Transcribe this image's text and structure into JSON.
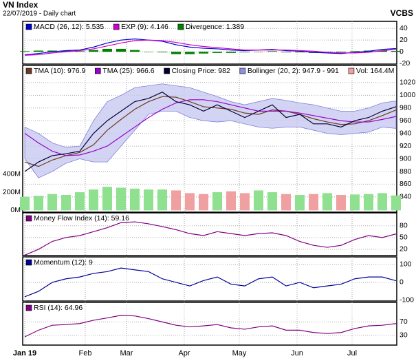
{
  "header": {
    "title": "VN Index",
    "subtitle": "22/07/2019 - Daily chart",
    "brand": "VCBS"
  },
  "x_axis": {
    "x": [
      0,
      5,
      10,
      15,
      20,
      25,
      30,
      35,
      40,
      45,
      50,
      55,
      60,
      65,
      70,
      75,
      80,
      85,
      90,
      95,
      100,
      105,
      110,
      115,
      120,
      125,
      130,
      135
    ],
    "xlim": [
      0,
      135
    ],
    "xticks": [
      {
        "value": 0,
        "label": "Jan 19"
      },
      {
        "value": 22,
        "label": "Feb"
      },
      {
        "value": 37,
        "label": "Mar"
      },
      {
        "value": 58,
        "label": "Apr"
      },
      {
        "value": 78,
        "label": "May"
      },
      {
        "value": 99,
        "label": "Jun"
      },
      {
        "value": 119,
        "label": "Jul"
      }
    ]
  },
  "chart_data": [
    {
      "type": "line",
      "ylim": [
        -21,
        52
      ],
      "yticks": [
        40,
        20,
        0,
        -20
      ],
      "grid": true,
      "series": [
        {
          "name": "MACD (26, 12): 5.535",
          "color": "#0000cc",
          "style": "line",
          "values": [
            -5,
            -3,
            0,
            2,
            3,
            8,
            15,
            20,
            22,
            20,
            18,
            12,
            8,
            6,
            5,
            3,
            2,
            3,
            4,
            2,
            1,
            -1,
            -2,
            -3,
            -1,
            1,
            4,
            5.535
          ]
        },
        {
          "name": "EXP (9): 4.146",
          "color": "#cc00cc",
          "style": "line",
          "values": [
            -6,
            -5,
            -2,
            0,
            2,
            5,
            10,
            15,
            19,
            20,
            19,
            16,
            12,
            9,
            7,
            5,
            3,
            3,
            3,
            3,
            2,
            1,
            -1,
            -2,
            -2,
            -1,
            2,
            4.146
          ]
        },
        {
          "name": "Divergence: 1.389",
          "color": "#008000",
          "style": "bar",
          "values": [
            1,
            2,
            2,
            2,
            1,
            3,
            5,
            5,
            3,
            0,
            -1,
            -4,
            -4,
            -3,
            -2,
            -2,
            -1,
            0,
            1,
            -1,
            -1,
            -2,
            -1,
            -1,
            1,
            2,
            2,
            1.389
          ]
        }
      ]
    },
    {
      "type": "line",
      "ylim": [
        816,
        1047
      ],
      "yticks": [
        1020,
        1000,
        980,
        960,
        940,
        920,
        900,
        880,
        860,
        840
      ],
      "grid": true,
      "y2lim": [
        -20,
        1600
      ],
      "y2ticks": [
        {
          "value": 400,
          "label": "400M"
        },
        {
          "value": 200,
          "label": "200M"
        },
        {
          "value": 0,
          "label": "0M"
        }
      ],
      "series": [
        {
          "name": "TMA (10): 976.9",
          "color": "#6b3a1f",
          "style": "line",
          "values": [
            895,
            888,
            898,
            905,
            910,
            922,
            945,
            962,
            978,
            990,
            998,
            997,
            990,
            982,
            980,
            978,
            972,
            970,
            977,
            975,
            970,
            963,
            958,
            954,
            955,
            960,
            968,
            976.9
          ]
        },
        {
          "name": "TMA (25): 966.6",
          "color": "#9900cc",
          "style": "line",
          "values": [
            940,
            925,
            912,
            905,
            906,
            912,
            920,
            935,
            950,
            965,
            978,
            988,
            993,
            993,
            990,
            985,
            980,
            975,
            975,
            975,
            972,
            968,
            964,
            960,
            958,
            958,
            962,
            966.6
          ]
        },
        {
          "name": "Closing Price: 982",
          "color": "#000033",
          "style": "line",
          "values": [
            880,
            895,
            905,
            908,
            912,
            940,
            960,
            975,
            990,
            995,
            1005,
            990,
            985,
            975,
            985,
            975,
            965,
            975,
            985,
            965,
            970,
            955,
            955,
            950,
            960,
            965,
            975,
            982
          ]
        },
        {
          "name": "Bollinger (20, 2): 947.9 - 991",
          "color": "#c8c8f0",
          "style": "band",
          "upper": [
            950,
            940,
            925,
            918,
            920,
            960,
            990,
            1000,
            1012,
            1015,
            1018,
            1015,
            1012,
            1005,
            998,
            990,
            985,
            990,
            995,
            992,
            988,
            985,
            980,
            975,
            975,
            980,
            988,
            991
          ],
          "lower": [
            900,
            870,
            880,
            893,
            900,
            895,
            895,
            920,
            945,
            970,
            975,
            975,
            965,
            960,
            958,
            960,
            955,
            950,
            948,
            950,
            950,
            945,
            940,
            938,
            940,
            942,
            950,
            947.9
          ]
        },
        {
          "name": "Vol: 164.4M",
          "color": "#f0a0a0",
          "style": "bar",
          "axis": "y2",
          "values": [
            150,
            160,
            180,
            170,
            200,
            230,
            260,
            250,
            240,
            230,
            230,
            220,
            190,
            180,
            200,
            210,
            190,
            220,
            200,
            180,
            170,
            180,
            190,
            170,
            175,
            180,
            190,
            164.4
          ],
          "colors": [
            "#8fe08f",
            "#8fe08f",
            "#8fe08f",
            "#8fe08f",
            "#8fe08f",
            "#8fe08f",
            "#8fe08f",
            "#8fe08f",
            "#8fe08f",
            "#8fe08f",
            "#8fe08f",
            "#f0a0a0",
            "#f0a0a0",
            "#f0a0a0",
            "#8fe08f",
            "#f0a0a0",
            "#f0a0a0",
            "#8fe08f",
            "#8fe08f",
            "#f0a0a0",
            "#8fe08f",
            "#f0a0a0",
            "#8fe08f",
            "#f0a0a0",
            "#8fe08f",
            "#8fe08f",
            "#8fe08f",
            "#8fe08f"
          ]
        }
      ]
    },
    {
      "type": "line",
      "ylim": [
        4,
        113
      ],
      "yticks": [
        80,
        50,
        20
      ],
      "grid": true,
      "series": [
        {
          "name": "Money Flow Index (14): 59.16",
          "color": "#800080",
          "style": "line",
          "values": [
            5,
            20,
            40,
            50,
            55,
            65,
            75,
            88,
            90,
            85,
            78,
            70,
            60,
            55,
            65,
            60,
            55,
            60,
            62,
            55,
            40,
            30,
            25,
            30,
            45,
            55,
            50,
            59.16
          ]
        }
      ]
    },
    {
      "type": "line",
      "ylim": [
        -104,
        142
      ],
      "yticks": [
        100,
        0,
        -100
      ],
      "grid": true,
      "series": [
        {
          "name": "Momentum (12): 9",
          "color": "#000099",
          "style": "line",
          "values": [
            -80,
            -50,
            0,
            20,
            30,
            50,
            60,
            80,
            70,
            60,
            20,
            0,
            -20,
            10,
            30,
            -10,
            -20,
            20,
            30,
            -20,
            0,
            -30,
            -20,
            -10,
            20,
            30,
            30,
            9
          ]
        }
      ]
    },
    {
      "type": "line",
      "ylim": [
        0,
        129
      ],
      "yticks": [
        70,
        30
      ],
      "grid": true,
      "series": [
        {
          "name": "RSI (14): 64.96",
          "color": "#800080",
          "style": "line",
          "values": [
            25,
            45,
            60,
            62,
            65,
            75,
            82,
            90,
            88,
            80,
            70,
            60,
            55,
            58,
            62,
            52,
            48,
            55,
            58,
            45,
            45,
            38,
            35,
            38,
            50,
            58,
            60,
            64.96
          ]
        }
      ]
    }
  ]
}
